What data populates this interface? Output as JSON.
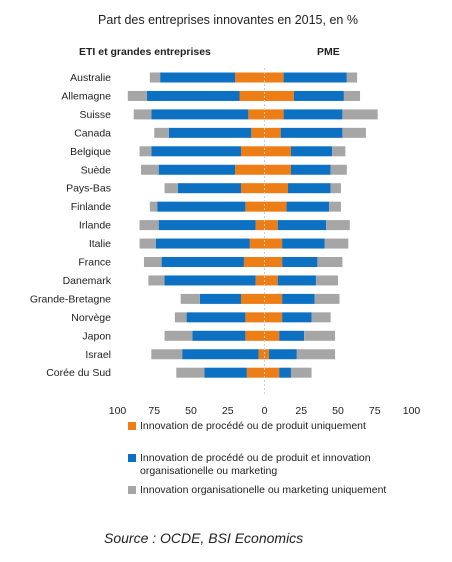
{
  "chart_data": {
    "type": "bar",
    "orientation": "horizontal-diverging",
    "title": "Part des entreprises innovantes en 2015, en %",
    "left_header": "ETI  et grandes entreprises",
    "right_header": "PME",
    "xlim": [
      -100,
      100
    ],
    "x_tick_labels": [
      "100",
      "75",
      "50",
      "25",
      "0",
      "25",
      "50",
      "75",
      "100"
    ],
    "categories": [
      "Australie",
      "Allemagne",
      "Suisse",
      "Canada",
      "Belgique",
      "Suède",
      "Pays-Bas",
      "Finlande",
      "Irlande",
      "Italie",
      "France",
      "Danemark",
      "Grande-Bretagne",
      "Norvège",
      "Japon",
      "Israel",
      "Corée du Sud"
    ],
    "series": [
      {
        "name": "Innovation de procédé ou de produit uniquement",
        "color": "#ED7D15",
        "left": [
          20,
          17,
          11,
          9,
          16,
          20,
          16,
          13,
          6,
          10,
          14,
          6,
          16,
          13,
          13,
          4,
          12
        ],
        "right": [
          13,
          20,
          13,
          11,
          18,
          18,
          16,
          15,
          9,
          12,
          12,
          9,
          12,
          12,
          10,
          3,
          10
        ]
      },
      {
        "name": "Innovation de procédé ou de produit et innovation organisationelle ou marketing",
        "color": "#0C71C2",
        "left": [
          51,
          63,
          66,
          56,
          61,
          52,
          43,
          60,
          66,
          64,
          56,
          62,
          28,
          40,
          36,
          52,
          29
        ],
        "right": [
          43,
          34,
          40,
          42,
          28,
          27,
          29,
          29,
          33,
          29,
          24,
          26,
          22,
          20,
          17,
          19,
          8
        ]
      },
      {
        "name": "Innovation organisationelle ou marketing uniquement",
        "color": "#A6A6A6",
        "left": [
          7,
          13,
          12,
          10,
          8,
          12,
          9,
          5,
          13,
          11,
          12,
          11,
          13,
          8,
          19,
          21,
          19
        ],
        "right": [
          7,
          11,
          24,
          16,
          9,
          11,
          7,
          8,
          16,
          16,
          17,
          15,
          17,
          13,
          21,
          26,
          14
        ]
      }
    ],
    "grid": false,
    "legend_position": "bottom"
  },
  "source": "Source : OCDE, BSI Economics"
}
